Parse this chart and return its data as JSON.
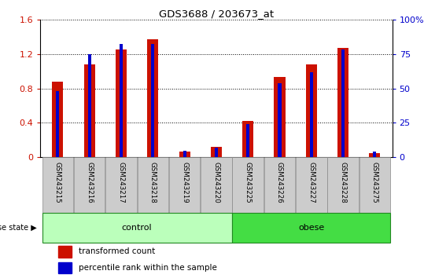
{
  "title": "GDS3688 / 203673_at",
  "samples": [
    "GSM243215",
    "GSM243216",
    "GSM243217",
    "GSM243218",
    "GSM243219",
    "GSM243220",
    "GSM243225",
    "GSM243226",
    "GSM243227",
    "GSM243228",
    "GSM243275"
  ],
  "transformed_count": [
    0.88,
    1.08,
    1.25,
    1.37,
    0.07,
    0.12,
    0.42,
    0.93,
    1.08,
    1.27,
    0.05
  ],
  "percentile_rank": [
    0.48,
    0.75,
    0.82,
    0.82,
    0.045,
    0.07,
    0.24,
    0.54,
    0.62,
    0.78,
    0.04
  ],
  "left_ylim": [
    0,
    1.6
  ],
  "right_ylim": [
    0,
    100
  ],
  "left_yticks": [
    0,
    0.4,
    0.8,
    1.2,
    1.6
  ],
  "right_yticks": [
    0,
    25,
    50,
    75,
    100
  ],
  "right_yticklabels": [
    "0",
    "25",
    "50",
    "75",
    "100%"
  ],
  "bar_color": "#cc1100",
  "percentile_color": "#0000cc",
  "control_color": "#bbffbb",
  "obese_color": "#44dd44",
  "tick_bg_color": "#cccccc",
  "legend_red_label": "transformed count",
  "legend_blue_label": "percentile rank within the sample",
  "disease_state_label": "disease state",
  "control_label": "control",
  "obese_label": "obese",
  "red_bar_width": 0.35,
  "blue_bar_width": 0.1,
  "n_control": 6,
  "n_obese": 5,
  "xlim_left": -0.55,
  "xlim_right": 10.55
}
